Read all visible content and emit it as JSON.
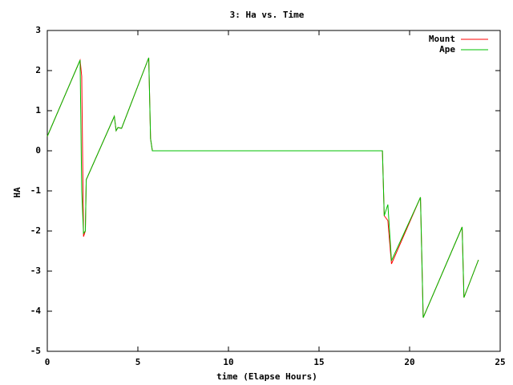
{
  "chart_data": {
    "type": "line",
    "title": "3: Ha vs. Time",
    "xlabel": "time (Elapse Hours)",
    "ylabel": "HA",
    "x": [
      0,
      1.81,
      1.9,
      2.0,
      2.1,
      2.15,
      3.7,
      3.8,
      3.9,
      4.1,
      5.6,
      5.7,
      5.8,
      18.5,
      18.6,
      18.8,
      19.0,
      20.6,
      20.75,
      22.9,
      23.0,
      23.8
    ],
    "series": [
      {
        "name": "Mount",
        "color": "#ff0000",
        "values": [
          0.36,
          2.26,
          1.86,
          -2.14,
          -2.0,
          -0.72,
          0.86,
          0.5,
          0.58,
          0.56,
          2.32,
          0.3,
          0.0,
          0.0,
          -1.62,
          -1.74,
          -2.82,
          -1.16,
          -4.16,
          -1.9,
          -3.66,
          -2.72
        ]
      },
      {
        "name": "Ape",
        "color": "#00c000",
        "values": [
          0.36,
          2.26,
          -1.0,
          -2.06,
          -2.0,
          -0.72,
          0.86,
          0.5,
          0.58,
          0.56,
          2.32,
          0.3,
          0.0,
          0.0,
          -1.62,
          -1.34,
          -2.74,
          -1.16,
          -4.16,
          -1.9,
          -3.66,
          -2.72
        ]
      }
    ],
    "xlim": [
      0,
      25
    ],
    "xticks": [
      0,
      5,
      10,
      15,
      20,
      25
    ],
    "ylim": [
      -5,
      3
    ],
    "yticks": [
      -5,
      -4,
      -3,
      -2,
      -1,
      0,
      1,
      2,
      3
    ],
    "legend": "top-right"
  }
}
